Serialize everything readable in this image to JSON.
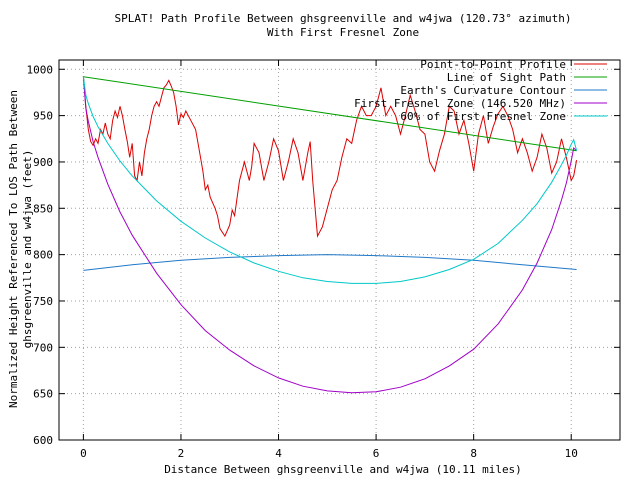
{
  "chart_data": {
    "type": "line",
    "title": "SPLAT! Path Profile Between ghsgreenville and w4jwa (120.73° azimuth)",
    "subtitle": "With First Fresnel Zone",
    "xlabel": "Distance Between ghsgreenville and w4jwa (10.11 miles)",
    "ylabel_line1": "Normalized Height Referenced To LOS Path Between",
    "ylabel_line2": "ghsgreenville and w4jwa (feet)",
    "xlim": [
      -0.5,
      11
    ],
    "ylim": [
      600,
      1010
    ],
    "xticks": [
      0,
      2,
      4,
      6,
      8,
      10
    ],
    "yticks": [
      600,
      650,
      700,
      750,
      800,
      850,
      900,
      950,
      1000
    ],
    "grid": true,
    "legend_position": "top-right",
    "series": [
      {
        "name": "Point-to-Point Profile",
        "color": "#dd0000",
        "x": [
          0.0,
          0.05,
          0.1,
          0.15,
          0.2,
          0.25,
          0.3,
          0.35,
          0.4,
          0.45,
          0.5,
          0.55,
          0.6,
          0.65,
          0.7,
          0.75,
          0.8,
          0.85,
          0.9,
          0.95,
          1.0,
          1.05,
          1.1,
          1.15,
          1.2,
          1.25,
          1.3,
          1.35,
          1.4,
          1.45,
          1.5,
          1.55,
          1.6,
          1.65,
          1.7,
          1.75,
          1.8,
          1.85,
          1.9,
          1.95,
          2.0,
          2.05,
          2.1,
          2.2,
          2.3,
          2.4,
          2.45,
          2.5,
          2.55,
          2.6,
          2.7,
          2.75,
          2.8,
          2.9,
          3.0,
          3.05,
          3.1,
          3.2,
          3.3,
          3.4,
          3.45,
          3.5,
          3.6,
          3.7,
          3.8,
          3.9,
          4.0,
          4.1,
          4.2,
          4.3,
          4.4,
          4.5,
          4.6,
          4.65,
          4.7,
          4.8,
          4.9,
          5.0,
          5.1,
          5.2,
          5.3,
          5.4,
          5.5,
          5.6,
          5.7,
          5.8,
          5.9,
          6.0,
          6.1,
          6.2,
          6.3,
          6.4,
          6.5,
          6.6,
          6.7,
          6.8,
          6.9,
          7.0,
          7.1,
          7.2,
          7.3,
          7.4,
          7.5,
          7.6,
          7.7,
          7.8,
          7.9,
          8.0,
          8.1,
          8.2,
          8.3,
          8.4,
          8.5,
          8.6,
          8.7,
          8.8,
          8.9,
          9.0,
          9.1,
          9.2,
          9.3,
          9.4,
          9.5,
          9.6,
          9.7,
          9.8,
          9.9,
          10.0,
          10.05,
          10.11
        ],
        "values": [
          992,
          960,
          935,
          922,
          918,
          925,
          920,
          935,
          930,
          942,
          930,
          925,
          945,
          955,
          948,
          960,
          950,
          935,
          922,
          905,
          920,
          885,
          880,
          900,
          885,
          910,
          925,
          935,
          950,
          960,
          965,
          960,
          970,
          980,
          983,
          988,
          982,
          975,
          960,
          940,
          952,
          948,
          955,
          945,
          935,
          905,
          890,
          870,
          875,
          862,
          850,
          842,
          828,
          820,
          832,
          848,
          842,
          880,
          900,
          880,
          895,
          920,
          910,
          880,
          900,
          925,
          912,
          880,
          900,
          925,
          910,
          880,
          910,
          922,
          880,
          820,
          830,
          850,
          870,
          880,
          905,
          925,
          920,
          945,
          960,
          950,
          950,
          960,
          980,
          950,
          960,
          950,
          930,
          950,
          972,
          955,
          935,
          930,
          900,
          890,
          912,
          930,
          960,
          955,
          930,
          945,
          920,
          890,
          930,
          950,
          920,
          938,
          952,
          960,
          950,
          935,
          910,
          925,
          910,
          890,
          905,
          930,
          915,
          888,
          900,
          925,
          905,
          880,
          885,
          902
        ]
      },
      {
        "name": "Line of Sight Path",
        "color": "#00a000",
        "x": [
          0,
          10.11
        ],
        "values": [
          992,
          912
        ]
      },
      {
        "name": "Earth's Curvature Contour",
        "color": "#1f78c8",
        "x": [
          0,
          1,
          2,
          3,
          4,
          5,
          6,
          7,
          8,
          9,
          10.11
        ],
        "values": [
          783,
          789,
          794,
          797,
          799,
          800,
          799,
          797,
          794,
          789,
          784
        ]
      },
      {
        "name": "First Fresnel Zone (146.520 MHz)",
        "color": "#a000c8",
        "x": [
          0,
          0.05,
          0.1,
          0.2,
          0.3,
          0.5,
          0.75,
          1,
          1.5,
          2,
          2.5,
          3,
          3.5,
          4,
          4.5,
          5,
          5.5,
          6,
          6.5,
          7,
          7.5,
          8,
          8.5,
          9,
          9.3,
          9.6,
          9.8,
          9.9,
          10.0,
          10.05,
          10.11
        ],
        "values": [
          992,
          958,
          944,
          922,
          905,
          876,
          846,
          821,
          780,
          746,
          718,
          697,
          680,
          667,
          658,
          653,
          651,
          652,
          657,
          666,
          680,
          698,
          725,
          762,
          791,
          827,
          859,
          877,
          901,
          915,
          912
        ]
      },
      {
        "name": "60% of First Fresnel Zone",
        "color": "#00c8c8",
        "x": [
          0,
          0.05,
          0.1,
          0.2,
          0.3,
          0.5,
          0.75,
          1,
          1.5,
          2,
          2.5,
          3,
          3.5,
          4,
          4.5,
          5,
          5.5,
          6,
          6.5,
          7,
          7.5,
          8,
          8.5,
          9,
          9.3,
          9.6,
          9.8,
          9.9,
          10.0,
          10.05,
          10.11
        ],
        "values": [
          992,
          972,
          963,
          949,
          938,
          920,
          901,
          885,
          858,
          836,
          818,
          803,
          791,
          782,
          775,
          771,
          769,
          769,
          771,
          776,
          784,
          795,
          812,
          837,
          855,
          878,
          897,
          907,
          919,
          924,
          912
        ]
      }
    ]
  }
}
